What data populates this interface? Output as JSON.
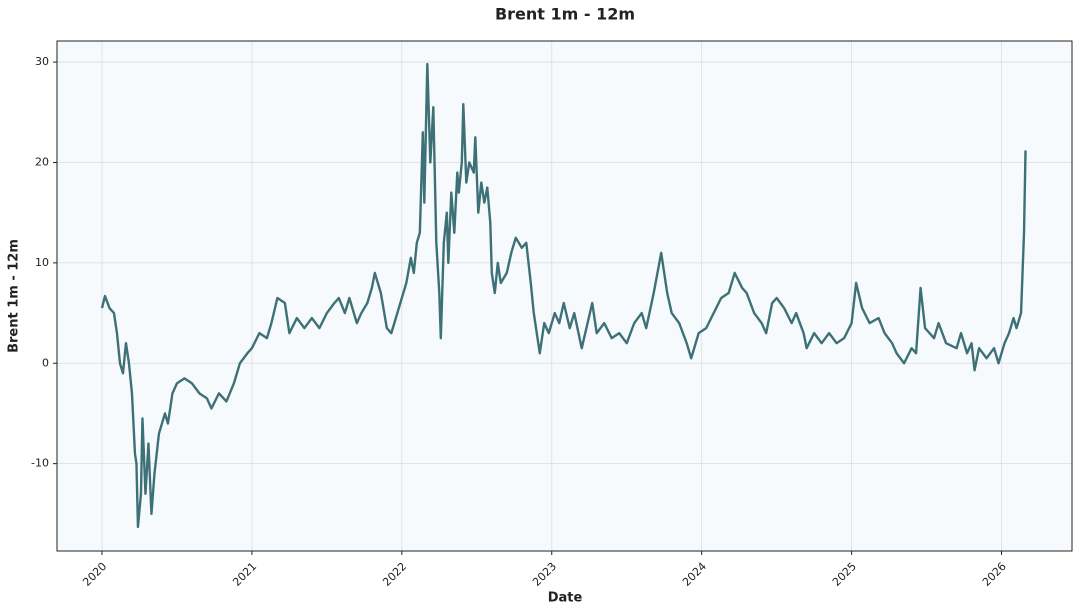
{
  "chart_data": {
    "type": "line",
    "title": "Brent 1m - 12m",
    "x_label": "Date",
    "y_label": "Brent 1m - 12m",
    "xlim": [
      2019.7,
      2026.47
    ],
    "xticks": [
      2020,
      2021,
      2022,
      2023,
      2024,
      2025,
      2026
    ],
    "ylim": [
      -18.7,
      32.1
    ],
    "yticks": [
      -10,
      0,
      10,
      20,
      30
    ],
    "grid": true,
    "series": [
      {
        "name": "Brent 1m - 12m",
        "color": "#3d7177",
        "x": [
          2020.0,
          2020.02,
          2020.05,
          2020.08,
          2020.1,
          2020.12,
          2020.14,
          2020.16,
          2020.18,
          2020.2,
          2020.22,
          2020.23,
          2020.24,
          2020.26,
          2020.27,
          2020.29,
          2020.31,
          2020.33,
          2020.35,
          2020.38,
          2020.42,
          2020.44,
          2020.47,
          2020.5,
          2020.55,
          2020.6,
          2020.65,
          2020.7,
          2020.73,
          2020.78,
          2020.83,
          2020.88,
          2020.92,
          2020.97,
          2021.0,
          2021.05,
          2021.1,
          2021.13,
          2021.17,
          2021.22,
          2021.25,
          2021.3,
          2021.35,
          2021.4,
          2021.45,
          2021.5,
          2021.55,
          2021.58,
          2021.62,
          2021.65,
          2021.7,
          2021.73,
          2021.77,
          2021.8,
          2021.82,
          2021.86,
          2021.9,
          2021.93,
          2021.97,
          2022.0,
          2022.03,
          2022.06,
          2022.08,
          2022.1,
          2022.12,
          2022.14,
          2022.15,
          2022.17,
          2022.19,
          2022.21,
          2022.23,
          2022.25,
          2022.26,
          2022.28,
          2022.3,
          2022.31,
          2022.33,
          2022.35,
          2022.37,
          2022.38,
          2022.4,
          2022.41,
          2022.43,
          2022.45,
          2022.48,
          2022.49,
          2022.51,
          2022.53,
          2022.55,
          2022.57,
          2022.59,
          2022.6,
          2022.62,
          2022.64,
          2022.66,
          2022.7,
          2022.73,
          2022.76,
          2022.8,
          2022.83,
          2022.86,
          2022.88,
          2022.92,
          2022.95,
          2022.98,
          2023.02,
          2023.05,
          2023.08,
          2023.12,
          2023.15,
          2023.2,
          2023.27,
          2023.3,
          2023.35,
          2023.4,
          2023.45,
          2023.5,
          2023.55,
          2023.6,
          2023.63,
          2023.68,
          2023.73,
          2023.77,
          2023.8,
          2023.85,
          2023.9,
          2023.93,
          2023.98,
          2024.03,
          2024.08,
          2024.13,
          2024.18,
          2024.22,
          2024.27,
          2024.3,
          2024.35,
          2024.4,
          2024.43,
          2024.47,
          2024.5,
          2024.55,
          2024.6,
          2024.63,
          2024.68,
          2024.7,
          2024.75,
          2024.8,
          2024.85,
          2024.9,
          2024.95,
          2025.0,
          2025.03,
          2025.07,
          2025.12,
          2025.18,
          2025.22,
          2025.27,
          2025.3,
          2025.35,
          2025.4,
          2025.43,
          2025.46,
          2025.49,
          2025.55,
          2025.58,
          2025.63,
          2025.7,
          2025.73,
          2025.77,
          2025.8,
          2025.82,
          2025.85,
          2025.9,
          2025.95,
          2025.98,
          2026.02,
          2026.05,
          2026.08,
          2026.1,
          2026.13,
          2026.15,
          2026.16
        ],
        "values": [
          5.5,
          6.7,
          5.5,
          5,
          3,
          0,
          -1,
          2,
          0,
          -3,
          -9,
          -10,
          -16.3,
          -13,
          -5.5,
          -13,
          -8,
          -15,
          -11,
          -7,
          -5,
          -6,
          -3,
          -2,
          -1.5,
          -2,
          -3,
          -3.5,
          -4.5,
          -3,
          -3.8,
          -2,
          0,
          1,
          1.5,
          3,
          2.5,
          4,
          6.5,
          6,
          3,
          4.5,
          3.5,
          4.5,
          3.5,
          5,
          6,
          6.5,
          5,
          6.5,
          4,
          5,
          6,
          7.5,
          9,
          7,
          3.5,
          3,
          5,
          6.5,
          8,
          10.5,
          9,
          12,
          13,
          23,
          16,
          29.8,
          20,
          25.5,
          12,
          7,
          2.5,
          12,
          15,
          10,
          17,
          13,
          19,
          17,
          20,
          25.8,
          18,
          20,
          19,
          22.5,
          15,
          18,
          16,
          17.5,
          14,
          9,
          7,
          10,
          8,
          9,
          11,
          12.5,
          11.5,
          12,
          8,
          5,
          1,
          4,
          3,
          5,
          4,
          6,
          3.5,
          5,
          1.5,
          6,
          3,
          4,
          2.5,
          3,
          2,
          4,
          5,
          3.5,
          7,
          11,
          7,
          5,
          4,
          2,
          0.5,
          3,
          3.5,
          5,
          6.5,
          7,
          9,
          7.5,
          7,
          5,
          4,
          3,
          6,
          6.5,
          5.5,
          4,
          5,
          3,
          1.5,
          3,
          2,
          3,
          2,
          2.5,
          4,
          8,
          5.5,
          4,
          4.5,
          3,
          2,
          1,
          0,
          1.5,
          1,
          7.5,
          3.5,
          2.5,
          4,
          2,
          1.5,
          3,
          1,
          2,
          -0.7,
          1.5,
          0.5,
          1.5,
          0,
          2,
          3,
          4.5,
          3.5,
          5,
          13,
          21.2
        ]
      }
    ]
  }
}
